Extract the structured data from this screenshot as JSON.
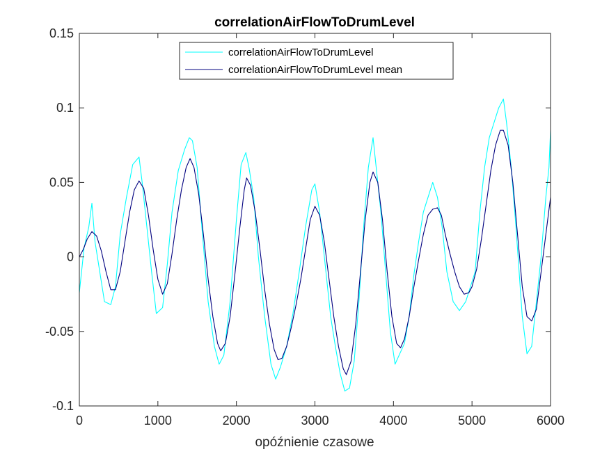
{
  "chart_data": {
    "type": "line",
    "title": "correlationAirFlowToDrumLevel",
    "xlabel": "opóźnienie czasowe",
    "ylabel": "",
    "xlim": [
      0,
      6000
    ],
    "ylim": [
      -0.1,
      0.15
    ],
    "x_ticks": [
      0,
      1000,
      2000,
      3000,
      4000,
      5000,
      6000
    ],
    "x_tick_labels": [
      "0",
      "1000",
      "2000",
      "3000",
      "4000",
      "5000",
      "6000"
    ],
    "y_ticks": [
      -0.1,
      -0.05,
      0,
      0.05,
      0.1,
      0.15
    ],
    "y_tick_labels": [
      "-0.1",
      "-0.05",
      "0",
      "0.05",
      "0.1",
      "0.15"
    ],
    "grid": false,
    "legend_position": "top-center",
    "colors": {
      "raw": "#00ffff",
      "mean": "#00007f",
      "axis": "#262626"
    },
    "series": [
      {
        "name": "correlationAirFlowToDrumLevel",
        "color": "#00ffff",
        "x": [
          0,
          60,
          120,
          160,
          200,
          260,
          320,
          400,
          460,
          520,
          600,
          680,
          760,
          800,
          860,
          920,
          980,
          1060,
          1120,
          1180,
          1260,
          1340,
          1400,
          1440,
          1500,
          1560,
          1640,
          1720,
          1780,
          1840,
          1920,
          2000,
          2060,
          2120,
          2160,
          2220,
          2280,
          2360,
          2440,
          2500,
          2560,
          2640,
          2720,
          2800,
          2880,
          2960,
          3000,
          3060,
          3120,
          3200,
          3260,
          3320,
          3380,
          3440,
          3500,
          3560,
          3620,
          3680,
          3740,
          3780,
          3840,
          3900,
          3960,
          4020,
          4080,
          4140,
          4200,
          4260,
          4320,
          4380,
          4440,
          4500,
          4560,
          4620,
          4680,
          4760,
          4840,
          4920,
          4980,
          5040,
          5100,
          5160,
          5220,
          5280,
          5340,
          5400,
          5440,
          5500,
          5560,
          5640,
          5700,
          5760,
          5820,
          5880,
          5940,
          5980,
          6000
        ],
        "values": [
          -0.024,
          0.006,
          0.02,
          0.036,
          0.01,
          -0.01,
          -0.03,
          -0.032,
          -0.02,
          0.015,
          0.04,
          0.062,
          0.067,
          0.05,
          0.02,
          -0.01,
          -0.038,
          -0.034,
          -0.005,
          0.03,
          0.058,
          0.072,
          0.08,
          0.078,
          0.06,
          0.02,
          -0.03,
          -0.06,
          -0.072,
          -0.066,
          -0.03,
          0.025,
          0.062,
          0.07,
          0.06,
          0.04,
          0.0,
          -0.04,
          -0.072,
          -0.082,
          -0.074,
          -0.06,
          -0.038,
          -0.01,
          0.02,
          0.045,
          0.049,
          0.03,
          0.0,
          -0.04,
          -0.06,
          -0.078,
          -0.09,
          -0.088,
          -0.07,
          -0.03,
          0.02,
          0.06,
          0.08,
          0.06,
          0.03,
          -0.01,
          -0.05,
          -0.072,
          -0.065,
          -0.058,
          -0.04,
          -0.012,
          0.01,
          0.03,
          0.04,
          0.05,
          0.04,
          0.02,
          -0.01,
          -0.03,
          -0.036,
          -0.03,
          -0.02,
          -0.01,
          0.03,
          0.06,
          0.08,
          0.09,
          0.1,
          0.106,
          0.09,
          0.06,
          0.02,
          -0.04,
          -0.065,
          -0.06,
          -0.03,
          0.0,
          0.04,
          0.06,
          0.085
        ]
      },
      {
        "name": "correlationAirFlowToDrumLevel mean",
        "color": "#00007f",
        "x": [
          0,
          50,
          100,
          160,
          220,
          280,
          340,
          400,
          460,
          520,
          580,
          640,
          700,
          760,
          820,
          880,
          940,
          1000,
          1060,
          1120,
          1180,
          1240,
          1300,
          1360,
          1410,
          1460,
          1520,
          1580,
          1640,
          1700,
          1760,
          1800,
          1860,
          1920,
          1980,
          2040,
          2100,
          2130,
          2180,
          2240,
          2300,
          2360,
          2420,
          2480,
          2530,
          2580,
          2640,
          2700,
          2760,
          2820,
          2880,
          2940,
          3000,
          3060,
          3120,
          3180,
          3240,
          3300,
          3360,
          3400,
          3460,
          3520,
          3580,
          3640,
          3700,
          3740,
          3800,
          3860,
          3920,
          3980,
          4040,
          4090,
          4140,
          4200,
          4260,
          4320,
          4380,
          4440,
          4500,
          4560,
          4610,
          4660,
          4720,
          4780,
          4840,
          4900,
          4960,
          5000,
          5060,
          5120,
          5180,
          5240,
          5300,
          5360,
          5400,
          5460,
          5520,
          5580,
          5640,
          5700,
          5760,
          5820,
          5880,
          5940,
          6000
        ],
        "values": [
          0.0,
          0.005,
          0.012,
          0.017,
          0.014,
          0.004,
          -0.01,
          -0.022,
          -0.022,
          -0.01,
          0.01,
          0.03,
          0.045,
          0.051,
          0.046,
          0.028,
          0.005,
          -0.015,
          -0.025,
          -0.018,
          0.002,
          0.025,
          0.045,
          0.06,
          0.066,
          0.06,
          0.042,
          0.015,
          -0.015,
          -0.04,
          -0.058,
          -0.063,
          -0.058,
          -0.04,
          -0.012,
          0.018,
          0.045,
          0.053,
          0.048,
          0.03,
          0.005,
          -0.022,
          -0.045,
          -0.062,
          -0.069,
          -0.068,
          -0.06,
          -0.047,
          -0.032,
          -0.015,
          0.005,
          0.025,
          0.034,
          0.028,
          0.01,
          -0.015,
          -0.04,
          -0.06,
          -0.075,
          -0.079,
          -0.07,
          -0.045,
          -0.01,
          0.025,
          0.05,
          0.057,
          0.05,
          0.025,
          -0.01,
          -0.04,
          -0.058,
          -0.061,
          -0.055,
          -0.04,
          -0.02,
          -0.002,
          0.015,
          0.028,
          0.032,
          0.033,
          0.028,
          0.015,
          0.002,
          -0.01,
          -0.02,
          -0.025,
          -0.024,
          -0.02,
          -0.008,
          0.012,
          0.035,
          0.058,
          0.075,
          0.085,
          0.085,
          0.075,
          0.05,
          0.015,
          -0.02,
          -0.04,
          -0.043,
          -0.035,
          -0.01,
          0.015,
          0.04
        ]
      }
    ]
  }
}
